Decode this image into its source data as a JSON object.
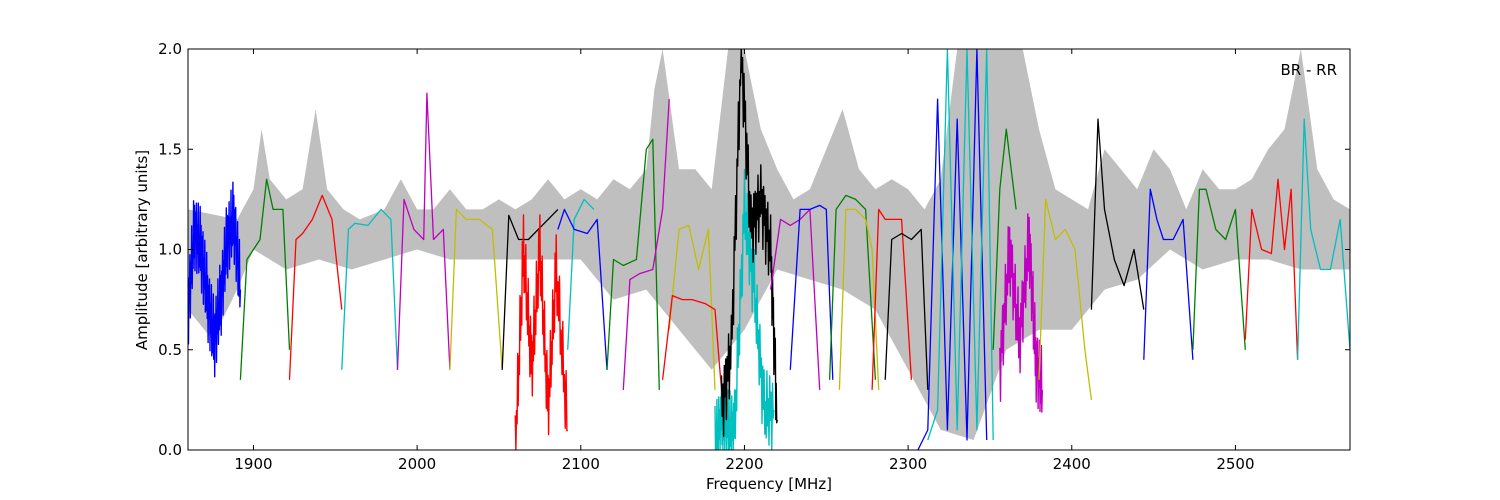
{
  "chart_data": {
    "type": "line",
    "title": "",
    "xlabel": "Frequency [MHz]",
    "ylabel": "Amplitude [arbitrary units]",
    "xlim": [
      1860,
      2570
    ],
    "ylim": [
      0.0,
      2.0
    ],
    "xticks": [
      1900,
      2000,
      2100,
      2200,
      2300,
      2400,
      2500
    ],
    "xtick_labels": [
      "1900",
      "2000",
      "2100",
      "2200",
      "2300",
      "2400",
      "2500"
    ],
    "yticks": [
      0.0,
      0.5,
      1.0,
      1.5,
      2.0
    ],
    "ytick_labels": [
      "0.0",
      "0.5",
      "1.0",
      "1.5",
      "2.0"
    ],
    "grid": false,
    "annotation": "BR - RR",
    "background_band": {
      "color": "#bfbfbf",
      "upper": [
        [
          1860,
          1.2
        ],
        [
          1890,
          1.15
        ],
        [
          1900,
          1.3
        ],
        [
          1905,
          1.6
        ],
        [
          1910,
          1.35
        ],
        [
          1920,
          1.25
        ],
        [
          1930,
          1.3
        ],
        [
          1938,
          1.7
        ],
        [
          1945,
          1.3
        ],
        [
          1955,
          1.2
        ],
        [
          1965,
          1.15
        ],
        [
          1980,
          1.2
        ],
        [
          1990,
          1.35
        ],
        [
          2000,
          1.2
        ],
        [
          2010,
          1.2
        ],
        [
          2020,
          1.3
        ],
        [
          2030,
          1.2
        ],
        [
          2040,
          1.2
        ],
        [
          2050,
          1.25
        ],
        [
          2060,
          1.2
        ],
        [
          2070,
          1.25
        ],
        [
          2080,
          1.35
        ],
        [
          2090,
          1.25
        ],
        [
          2100,
          1.3
        ],
        [
          2110,
          1.25
        ],
        [
          2120,
          1.35
        ],
        [
          2130,
          1.3
        ],
        [
          2140,
          1.4
        ],
        [
          2145,
          1.8
        ],
        [
          2150,
          2.0
        ],
        [
          2160,
          1.4
        ],
        [
          2170,
          1.4
        ],
        [
          2180,
          1.3
        ],
        [
          2190,
          2.0
        ],
        [
          2200,
          2.0
        ],
        [
          2210,
          1.6
        ],
        [
          2220,
          1.4
        ],
        [
          2230,
          1.25
        ],
        [
          2240,
          1.3
        ],
        [
          2250,
          1.5
        ],
        [
          2260,
          1.7
        ],
        [
          2270,
          1.4
        ],
        [
          2280,
          1.3
        ],
        [
          2290,
          1.35
        ],
        [
          2300,
          1.3
        ],
        [
          2310,
          1.2
        ],
        [
          2320,
          1.35
        ],
        [
          2330,
          2.0
        ],
        [
          2340,
          2.0
        ],
        [
          2350,
          2.0
        ],
        [
          2360,
          2.0
        ],
        [
          2370,
          2.0
        ],
        [
          2380,
          1.6
        ],
        [
          2390,
          1.3
        ],
        [
          2400,
          1.25
        ],
        [
          2410,
          1.2
        ],
        [
          2420,
          1.5
        ],
        [
          2430,
          1.4
        ],
        [
          2440,
          1.3
        ],
        [
          2450,
          1.5
        ],
        [
          2460,
          1.4
        ],
        [
          2470,
          1.2
        ],
        [
          2480,
          1.4
        ],
        [
          2490,
          1.3
        ],
        [
          2500,
          1.3
        ],
        [
          2510,
          1.35
        ],
        [
          2520,
          1.5
        ],
        [
          2530,
          1.6
        ],
        [
          2540,
          2.0
        ],
        [
          2550,
          1.4
        ],
        [
          2560,
          1.25
        ],
        [
          2570,
          1.2
        ]
      ],
      "lower": [
        [
          1860,
          0.7
        ],
        [
          1875,
          0.55
        ],
        [
          1890,
          0.8
        ],
        [
          1900,
          1.0
        ],
        [
          1920,
          0.9
        ],
        [
          1940,
          0.95
        ],
        [
          1960,
          0.9
        ],
        [
          1980,
          0.95
        ],
        [
          2000,
          1.0
        ],
        [
          2020,
          0.95
        ],
        [
          2040,
          0.95
        ],
        [
          2060,
          0.95
        ],
        [
          2080,
          0.95
        ],
        [
          2100,
          0.95
        ],
        [
          2120,
          0.75
        ],
        [
          2140,
          0.8
        ],
        [
          2160,
          0.6
        ],
        [
          2180,
          0.4
        ],
        [
          2200,
          0.6
        ],
        [
          2220,
          0.9
        ],
        [
          2240,
          0.85
        ],
        [
          2260,
          0.8
        ],
        [
          2280,
          0.7
        ],
        [
          2300,
          0.4
        ],
        [
          2320,
          0.1
        ],
        [
          2340,
          0.05
        ],
        [
          2360,
          0.5
        ],
        [
          2380,
          0.6
        ],
        [
          2400,
          0.6
        ],
        [
          2420,
          0.8
        ],
        [
          2440,
          0.85
        ],
        [
          2460,
          1.0
        ],
        [
          2480,
          0.9
        ],
        [
          2500,
          0.95
        ],
        [
          2520,
          0.95
        ],
        [
          2540,
          0.9
        ],
        [
          2560,
          0.9
        ],
        [
          2570,
          0.9
        ]
      ]
    },
    "series": [
      {
        "color": "#0000ff",
        "x": [
          1860,
          1864,
          1868,
          1872,
          1876,
          1880,
          1884,
          1888,
          1892
        ],
        "y": [
          0.7,
          1.1,
          1.0,
          0.75,
          0.55,
          0.75,
          1.05,
          1.15,
          0.8
        ],
        "noise": true
      },
      {
        "color": "#008000",
        "x": [
          1892,
          1896,
          1900,
          1904,
          1908,
          1912,
          1918,
          1922
        ],
        "y": [
          0.35,
          0.95,
          1.0,
          1.05,
          1.35,
          1.2,
          1.2,
          0.5
        ]
      },
      {
        "color": "#ff0000",
        "x": [
          1922,
          1926,
          1930,
          1936,
          1942,
          1948,
          1954
        ],
        "y": [
          0.35,
          1.05,
          1.08,
          1.15,
          1.27,
          1.15,
          0.7
        ]
      },
      {
        "color": "#00bfbf",
        "x": [
          1954,
          1958,
          1962,
          1970,
          1978,
          1984,
          1988
        ],
        "y": [
          0.4,
          1.1,
          1.13,
          1.12,
          1.2,
          1.15,
          0.4
        ]
      },
      {
        "color": "#bf00bf",
        "x": [
          1988,
          1992,
          1998,
          2004,
          2006,
          2010,
          2016,
          2020
        ],
        "y": [
          0.4,
          1.25,
          1.1,
          1.05,
          1.78,
          1.05,
          1.1,
          0.4
        ]
      },
      {
        "color": "#bfbf00",
        "x": [
          2020,
          2024,
          2030,
          2038,
          2046,
          2052
        ],
        "y": [
          0.4,
          1.2,
          1.15,
          1.15,
          1.1,
          0.4
        ]
      },
      {
        "color": "#000000",
        "x": [
          2052,
          2056,
          2062,
          2068,
          2074,
          2080,
          2086
        ],
        "y": [
          0.4,
          1.17,
          1.05,
          1.05,
          1.1,
          1.15,
          1.2
        ]
      },
      {
        "color": "#ff0000",
        "x": [
          2060,
          2065,
          2070,
          2075,
          2080,
          2085,
          2092
        ],
        "y": [
          0.0,
          1.0,
          0.4,
          1.0,
          0.2,
          0.9,
          0.1
        ],
        "noise": true
      },
      {
        "color": "#00bfbf",
        "x": [
          2092,
          2096,
          2102,
          2108
        ],
        "y": [
          0.5,
          1.15,
          1.25,
          1.2
        ]
      },
      {
        "color": "#0000ff",
        "x": [
          2086,
          2090,
          2096,
          2104,
          2110,
          2116
        ],
        "y": [
          1.1,
          1.2,
          1.1,
          1.08,
          1.15,
          0.4
        ]
      },
      {
        "color": "#008000",
        "x": [
          2116,
          2120,
          2126,
          2134,
          2140,
          2144,
          2148
        ],
        "y": [
          0.4,
          0.95,
          0.92,
          0.95,
          1.5,
          1.55,
          0.3
        ]
      },
      {
        "color": "#bf00bf",
        "x": [
          2126,
          2130,
          2136,
          2144,
          2150,
          2154
        ],
        "y": [
          0.3,
          0.85,
          0.88,
          0.9,
          1.2,
          1.75
        ]
      },
      {
        "color": "#bfbf00",
        "x": [
          2154,
          2160,
          2166,
          2172,
          2178,
          2182
        ],
        "y": [
          0.6,
          1.1,
          1.12,
          0.9,
          1.1,
          0.3
        ]
      },
      {
        "color": "#ff0000",
        "x": [
          2150,
          2156,
          2162,
          2168,
          2176,
          2182,
          2186
        ],
        "y": [
          0.35,
          0.77,
          0.75,
          0.75,
          0.73,
          0.7,
          0.3
        ]
      },
      {
        "color": "#00bfbf",
        "x": [
          2182,
          2186,
          2190,
          2194,
          2200,
          2206,
          2212,
          2218
        ],
        "y": [
          0.02,
          0.15,
          0.1,
          0.1,
          1.2,
          0.8,
          0.2,
          0.2
        ],
        "noise": true
      },
      {
        "color": "#000000",
        "x": [
          2186,
          2192,
          2198,
          2204,
          2210,
          2216,
          2220
        ],
        "y": [
          0.2,
          0.5,
          2.0,
          1.1,
          1.25,
          1.0,
          0.15
        ],
        "noise": true
      },
      {
        "color": "#bf00bf",
        "x": [
          2216,
          2222,
          2228,
          2234,
          2240,
          2246
        ],
        "y": [
          0.8,
          1.15,
          1.12,
          1.15,
          1.2,
          0.3
        ]
      },
      {
        "color": "#0000ff",
        "x": [
          2228,
          2234,
          2240,
          2246,
          2250,
          2254
        ],
        "y": [
          0.4,
          1.2,
          1.2,
          1.22,
          1.2,
          0.35
        ]
      },
      {
        "color": "#008000",
        "x": [
          2252,
          2256,
          2262,
          2268,
          2274,
          2280
        ],
        "y": [
          0.35,
          1.2,
          1.27,
          1.25,
          1.2,
          0.35
        ]
      },
      {
        "color": "#bfbf00",
        "x": [
          2258,
          2262,
          2268,
          2274,
          2278,
          2282
        ],
        "y": [
          0.3,
          1.2,
          1.2,
          1.15,
          1.0,
          0.3
        ]
      },
      {
        "color": "#ff0000",
        "x": [
          2278,
          2282,
          2286,
          2290,
          2296,
          2302
        ],
        "y": [
          0.3,
          1.2,
          1.15,
          1.15,
          1.15,
          0.35
        ]
      },
      {
        "color": "#000000",
        "x": [
          2286,
          2290,
          2296,
          2302,
          2308,
          2312
        ],
        "y": [
          0.35,
          1.05,
          1.08,
          1.05,
          1.1,
          0.3
        ]
      },
      {
        "color": "#0000ff",
        "x": [
          2306,
          2312,
          2318,
          2324,
          2330,
          2336,
          2342,
          2348
        ],
        "y": [
          0.0,
          0.1,
          1.75,
          0.1,
          1.65,
          0.05,
          2.0,
          0.05
        ]
      },
      {
        "color": "#00bfbf",
        "x": [
          2312,
          2318,
          2324,
          2330,
          2336,
          2342,
          2348,
          2352
        ],
        "y": [
          0.05,
          0.2,
          2.0,
          0.1,
          2.0,
          0.1,
          2.0,
          0.05
        ]
      },
      {
        "color": "#008000",
        "x": [
          2352,
          2356,
          2360,
          2366
        ],
        "y": [
          0.5,
          1.3,
          1.6,
          1.2
        ]
      },
      {
        "color": "#bf00bf",
        "x": [
          2356,
          2362,
          2368,
          2374,
          2378,
          2382
        ],
        "y": [
          0.4,
          1.0,
          0.55,
          1.05,
          0.45,
          0.3
        ],
        "noise": true
      },
      {
        "color": "#bfbf00",
        "x": [
          2380,
          2384,
          2390,
          2396,
          2402,
          2408,
          2412
        ],
        "y": [
          0.35,
          1.25,
          1.05,
          1.1,
          1.0,
          0.5,
          0.25
        ]
      },
      {
        "color": "#000000",
        "x": [
          2412,
          2416,
          2420,
          2426,
          2432,
          2438,
          2444
        ],
        "y": [
          0.7,
          1.65,
          1.2,
          0.95,
          0.82,
          1.0,
          0.7
        ]
      },
      {
        "color": "#0000ff",
        "x": [
          2444,
          2448,
          2452,
          2456,
          2462,
          2468,
          2474
        ],
        "y": [
          0.45,
          1.3,
          1.15,
          1.05,
          1.05,
          1.15,
          0.45
        ]
      },
      {
        "color": "#008000",
        "x": [
          2474,
          2478,
          2482,
          2488,
          2494,
          2500,
          2506
        ],
        "y": [
          0.5,
          1.3,
          1.3,
          1.1,
          1.05,
          1.2,
          0.5
        ]
      },
      {
        "color": "#ff0000",
        "x": [
          2506,
          2510,
          2516,
          2522,
          2526,
          2530,
          2534,
          2538
        ],
        "y": [
          0.55,
          1.2,
          1.0,
          0.98,
          1.35,
          1.0,
          1.3,
          0.45
        ]
      },
      {
        "color": "#00bfbf",
        "x": [
          2538,
          2542,
          2546,
          2552,
          2558,
          2564,
          2570
        ],
        "y": [
          0.45,
          1.65,
          1.1,
          0.9,
          0.9,
          1.15,
          0.5
        ]
      }
    ]
  }
}
